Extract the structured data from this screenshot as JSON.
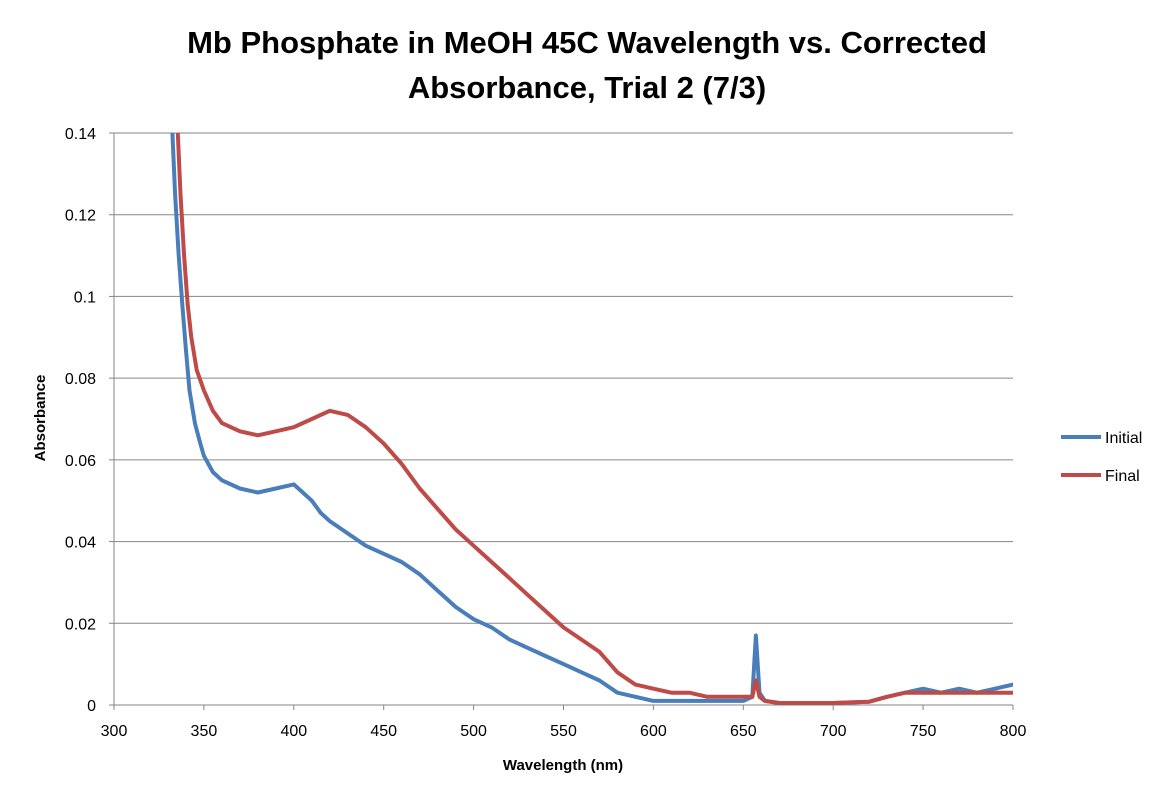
{
  "chart_data": {
    "type": "line",
    "title_lines": [
      "Mb Phosphate in MeOH 45C Wavelength vs. Corrected",
      "Absorbance, Trial 2 (7/3)"
    ],
    "xlabel": "Wavelength (nm)",
    "ylabel": "Absorbance",
    "xlim": [
      300,
      800
    ],
    "ylim": [
      0,
      0.14
    ],
    "x_ticks": [
      300,
      350,
      400,
      450,
      500,
      550,
      600,
      650,
      700,
      750,
      800
    ],
    "y_ticks": [
      0,
      0.02,
      0.04,
      0.06,
      0.08,
      0.1,
      0.12,
      0.14
    ],
    "x_tick_labels": [
      "300",
      "350",
      "400",
      "450",
      "500",
      "550",
      "600",
      "650",
      "700",
      "750",
      "800"
    ],
    "y_tick_labels": [
      "0",
      "0.02",
      "0.04",
      "0.06",
      "0.08",
      "0.1",
      "0.12",
      "0.14"
    ],
    "grid": "horizontal",
    "legend_position": "right",
    "series": [
      {
        "name": "Initial",
        "color": "#4a7ebb",
        "x": [
          332,
          334,
          336,
          338,
          340,
          342,
          345,
          348,
          350,
          355,
          360,
          370,
          380,
          390,
          400,
          405,
          410,
          415,
          420,
          430,
          440,
          450,
          460,
          470,
          480,
          490,
          500,
          510,
          520,
          530,
          540,
          550,
          560,
          570,
          580,
          590,
          600,
          610,
          620,
          630,
          640,
          650,
          655,
          657,
          659,
          662,
          670,
          680,
          700,
          720,
          730,
          740,
          750,
          760,
          770,
          780,
          790,
          800
        ],
        "y": [
          0.145,
          0.125,
          0.11,
          0.098,
          0.087,
          0.077,
          0.069,
          0.064,
          0.061,
          0.057,
          0.055,
          0.053,
          0.052,
          0.053,
          0.054,
          0.052,
          0.05,
          0.047,
          0.045,
          0.042,
          0.039,
          0.037,
          0.035,
          0.032,
          0.028,
          0.024,
          0.021,
          0.019,
          0.016,
          0.014,
          0.012,
          0.01,
          0.008,
          0.006,
          0.003,
          0.002,
          0.001,
          0.001,
          0.001,
          0.001,
          0.001,
          0.001,
          0.002,
          0.017,
          0.003,
          0.001,
          0.0005,
          0.0005,
          0.0005,
          0.0008,
          0.002,
          0.003,
          0.004,
          0.003,
          0.004,
          0.003,
          0.004,
          0.005
        ]
      },
      {
        "name": "Final",
        "color": "#be4b48",
        "x": [
          335,
          337,
          339,
          341,
          343,
          346,
          350,
          355,
          360,
          370,
          380,
          390,
          400,
          410,
          420,
          430,
          440,
          450,
          460,
          470,
          480,
          490,
          500,
          510,
          520,
          530,
          540,
          550,
          560,
          570,
          580,
          590,
          600,
          610,
          620,
          630,
          640,
          650,
          655,
          657,
          659,
          662,
          670,
          680,
          700,
          720,
          730,
          740,
          750,
          760,
          770,
          780,
          790,
          800
        ],
        "y": [
          0.145,
          0.125,
          0.11,
          0.098,
          0.09,
          0.082,
          0.077,
          0.072,
          0.069,
          0.067,
          0.066,
          0.067,
          0.068,
          0.07,
          0.072,
          0.071,
          0.068,
          0.064,
          0.059,
          0.053,
          0.048,
          0.043,
          0.039,
          0.035,
          0.031,
          0.027,
          0.023,
          0.019,
          0.016,
          0.013,
          0.008,
          0.005,
          0.004,
          0.003,
          0.003,
          0.002,
          0.002,
          0.002,
          0.002,
          0.006,
          0.002,
          0.001,
          0.0005,
          0.0005,
          0.0005,
          0.0008,
          0.002,
          0.003,
          0.003,
          0.003,
          0.003,
          0.003,
          0.003,
          0.003
        ]
      }
    ]
  }
}
